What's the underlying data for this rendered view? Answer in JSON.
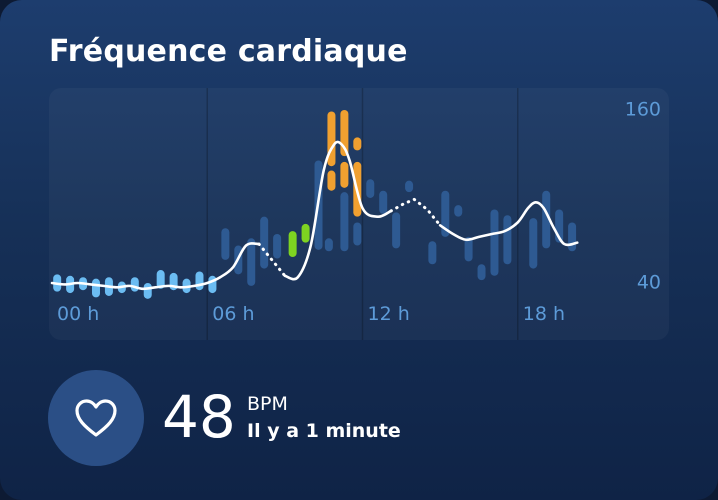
{
  "card": {
    "title": "Fréquence cardiaque",
    "current_bpm": "48",
    "unit": "BPM",
    "updated": "Il y a 1 minute"
  },
  "icons": {
    "heart": "heart-icon"
  },
  "colors": {
    "background_top": "#1d3d6e",
    "background_bottom": "#0f2346",
    "axis_text": "#5d9bd8",
    "range_bar": "#2e5a92",
    "rest_bar": "#6bbcf2",
    "active_bar": "#7ed321",
    "peak_bar": "#f0a030",
    "avg_line": "#ffffff",
    "icon_circle": "#2b4f86"
  },
  "chart_data": {
    "type": "line",
    "x_ticks": [
      "00 h",
      "06 h",
      "12 h",
      "18 h"
    ],
    "y_ticks": [
      160,
      40
    ],
    "ylim": [
      20,
      165
    ],
    "xlim": [
      0,
      24
    ],
    "grid": true,
    "series": [
      {
        "role": "average",
        "points": [
          [
            0,
            40
          ],
          [
            0.5,
            39
          ],
          [
            1,
            40
          ],
          [
            1.5,
            39
          ],
          [
            2,
            38
          ],
          [
            2.5,
            37
          ],
          [
            3,
            38
          ],
          [
            3.5,
            36
          ],
          [
            4,
            37
          ],
          [
            4.5,
            38
          ],
          [
            5,
            37
          ],
          [
            5.5,
            38
          ],
          [
            6,
            40
          ],
          [
            6.5,
            44
          ],
          [
            7,
            51
          ],
          [
            7.5,
            66
          ],
          [
            8,
            67
          ],
          [
            8.5,
            56
          ],
          [
            9,
            45
          ],
          [
            9.5,
            44
          ],
          [
            10,
            66
          ],
          [
            10.5,
            118
          ],
          [
            10.9,
            136
          ],
          [
            11.2,
            136
          ],
          [
            11.5,
            125
          ],
          [
            12,
            92
          ],
          [
            12.6,
            86
          ],
          [
            13.1,
            90
          ],
          [
            13.6,
            95
          ],
          [
            14,
            98
          ],
          [
            14.5,
            91
          ],
          [
            15,
            80
          ],
          [
            15.5,
            74
          ],
          [
            16,
            70
          ],
          [
            16.5,
            72
          ],
          [
            17,
            74
          ],
          [
            17.5,
            76
          ],
          [
            18,
            82
          ],
          [
            18.4,
            92
          ],
          [
            18.7,
            96
          ],
          [
            19,
            92
          ],
          [
            19.4,
            78
          ],
          [
            19.8,
            67
          ],
          [
            20.3,
            68
          ]
        ],
        "dotted_segments": [
          [
            7.7,
            9.2
          ],
          [
            13.0,
            15.0
          ]
        ]
      }
    ],
    "ranges": [
      {
        "x": 0.2,
        "lo": 34,
        "hi": 46,
        "zone": "rest"
      },
      {
        "x": 0.7,
        "lo": 33,
        "hi": 45,
        "zone": "rest"
      },
      {
        "x": 1.2,
        "lo": 35,
        "hi": 44,
        "zone": "rest"
      },
      {
        "x": 1.7,
        "lo": 30,
        "hi": 43,
        "zone": "rest"
      },
      {
        "x": 2.2,
        "lo": 31,
        "hi": 44,
        "zone": "rest"
      },
      {
        "x": 2.7,
        "lo": 33,
        "hi": 41,
        "zone": "rest"
      },
      {
        "x": 3.2,
        "lo": 34,
        "hi": 44,
        "zone": "rest"
      },
      {
        "x": 3.7,
        "lo": 29,
        "hi": 40,
        "zone": "rest"
      },
      {
        "x": 4.2,
        "lo": 36,
        "hi": 49,
        "zone": "rest"
      },
      {
        "x": 4.7,
        "lo": 35,
        "hi": 47,
        "zone": "rest"
      },
      {
        "x": 5.2,
        "lo": 33,
        "hi": 43,
        "zone": "rest"
      },
      {
        "x": 5.7,
        "lo": 35,
        "hi": 48,
        "zone": "rest"
      },
      {
        "x": 6.2,
        "lo": 33,
        "hi": 45,
        "zone": "rest"
      },
      {
        "x": 6.7,
        "lo": 56,
        "hi": 78,
        "zone": "normal"
      },
      {
        "x": 7.2,
        "lo": 46,
        "hi": 66,
        "zone": "normal"
      },
      {
        "x": 7.7,
        "lo": 38,
        "hi": 71,
        "zone": "normal"
      },
      {
        "x": 8.2,
        "lo": 50,
        "hi": 86,
        "zone": "normal"
      },
      {
        "x": 8.7,
        "lo": 57,
        "hi": 74,
        "zone": "normal"
      },
      {
        "x": 9.3,
        "lo": 58,
        "hi": 76,
        "zone": "active"
      },
      {
        "x": 9.8,
        "lo": 68,
        "hi": 81,
        "zone": "active"
      },
      {
        "x": 10.3,
        "lo": 63,
        "hi": 125,
        "zone": "normal"
      },
      {
        "x": 10.7,
        "lo": 62,
        "hi": 71,
        "zone": "normal"
      },
      {
        "x": 10.8,
        "lo": 121,
        "hi": 159,
        "zone": "peak"
      },
      {
        "x": 10.8,
        "lo": 104,
        "hi": 118,
        "zone": "peak"
      },
      {
        "x": 11.3,
        "lo": 128,
        "hi": 160,
        "zone": "peak"
      },
      {
        "x": 11.3,
        "lo": 106,
        "hi": 124,
        "zone": "peak"
      },
      {
        "x": 11.3,
        "lo": 62,
        "hi": 103,
        "zone": "normal"
      },
      {
        "x": 11.8,
        "lo": 132,
        "hi": 141,
        "zone": "peak"
      },
      {
        "x": 11.8,
        "lo": 86,
        "hi": 124,
        "zone": "peak"
      },
      {
        "x": 11.8,
        "lo": 66,
        "hi": 82,
        "zone": "normal"
      },
      {
        "x": 12.3,
        "lo": 99,
        "hi": 112,
        "zone": "normal"
      },
      {
        "x": 12.8,
        "lo": 88,
        "hi": 104,
        "zone": "normal"
      },
      {
        "x": 13.3,
        "lo": 64,
        "hi": 89,
        "zone": "normal"
      },
      {
        "x": 13.8,
        "lo": 103,
        "hi": 111,
        "zone": "normal"
      },
      {
        "x": 14.7,
        "lo": 53,
        "hi": 69,
        "zone": "normal"
      },
      {
        "x": 15.2,
        "lo": 72,
        "hi": 104,
        "zone": "normal"
      },
      {
        "x": 15.7,
        "lo": 86,
        "hi": 94,
        "zone": "normal"
      },
      {
        "x": 16.1,
        "lo": 55,
        "hi": 72,
        "zone": "normal"
      },
      {
        "x": 16.6,
        "lo": 42,
        "hi": 53,
        "zone": "normal"
      },
      {
        "x": 17.1,
        "lo": 45,
        "hi": 91,
        "zone": "normal"
      },
      {
        "x": 17.6,
        "lo": 53,
        "hi": 87,
        "zone": "normal"
      },
      {
        "x": 18.6,
        "lo": 50,
        "hi": 85,
        "zone": "normal"
      },
      {
        "x": 19.1,
        "lo": 64,
        "hi": 104,
        "zone": "normal"
      },
      {
        "x": 19.6,
        "lo": 68,
        "hi": 91,
        "zone": "normal"
      },
      {
        "x": 20.1,
        "lo": 62,
        "hi": 82,
        "zone": "normal"
      }
    ]
  }
}
